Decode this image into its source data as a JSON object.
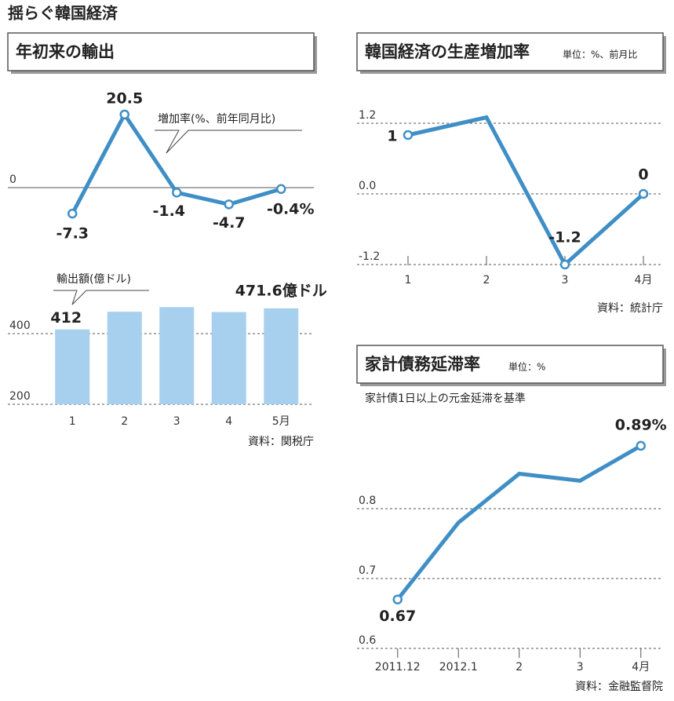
{
  "title": "揺らぐ韓国経済",
  "chart_data": [
    {
      "type": "line",
      "title": "年初来の輸出",
      "annotation": "増加率(%、前年同月比)",
      "values": [
        -7.3,
        20.5,
        -1.4,
        -4.7,
        -0.4
      ],
      "value_labels": [
        "-7.3",
        "20.5",
        "-1.4",
        "-4.7",
        "-0.4%"
      ],
      "ylim": [
        -10,
        25
      ],
      "yticks": [
        0
      ],
      "grid": true,
      "color": "#3f8fc6"
    },
    {
      "type": "bar",
      "annotation": "輸出額(億ドル)",
      "categories": [
        "1",
        "2",
        "3",
        "4",
        "5月"
      ],
      "values": [
        412,
        462,
        475,
        461,
        471.6
      ],
      "value_labels": [
        "412",
        null,
        null,
        null,
        "471.6億ドル"
      ],
      "ylim": [
        200,
        500
      ],
      "yticks": [
        200,
        400
      ],
      "grid": true,
      "color": "#a7d0ef",
      "source": "資料：関税庁"
    },
    {
      "type": "line",
      "title": "韓国経済の生産増加率",
      "subtitle": "単位：%、前月比",
      "categories": [
        "1",
        "2",
        "3",
        "4月"
      ],
      "values": [
        1,
        1.3,
        -1.2,
        0
      ],
      "value_labels": [
        "1",
        null,
        "-1.2",
        "0"
      ],
      "ylim": [
        -1.4,
        1.5
      ],
      "yticks": [
        1.2,
        {
          "value": 0,
          "label": "0.0"
        },
        -1.2
      ],
      "grid": true,
      "color": "#3f8fc6",
      "source": "資料：統計庁"
    },
    {
      "type": "line",
      "title": "家計債務延滞率",
      "subtitle": "単位：%",
      "note": "家計債1日以上の元金延滞を基準",
      "categories": [
        "2011.12",
        "2012.1",
        "2",
        "3",
        "4月"
      ],
      "values": [
        0.67,
        0.78,
        0.85,
        0.84,
        0.89
      ],
      "value_labels": [
        "0.67",
        null,
        null,
        null,
        "0.89%"
      ],
      "ylim": [
        0.58,
        0.92
      ],
      "yticks": [
        0.6,
        0.7,
        0.8
      ],
      "grid": true,
      "color": "#3f8fc6",
      "source": "資料：金融監督院"
    }
  ]
}
